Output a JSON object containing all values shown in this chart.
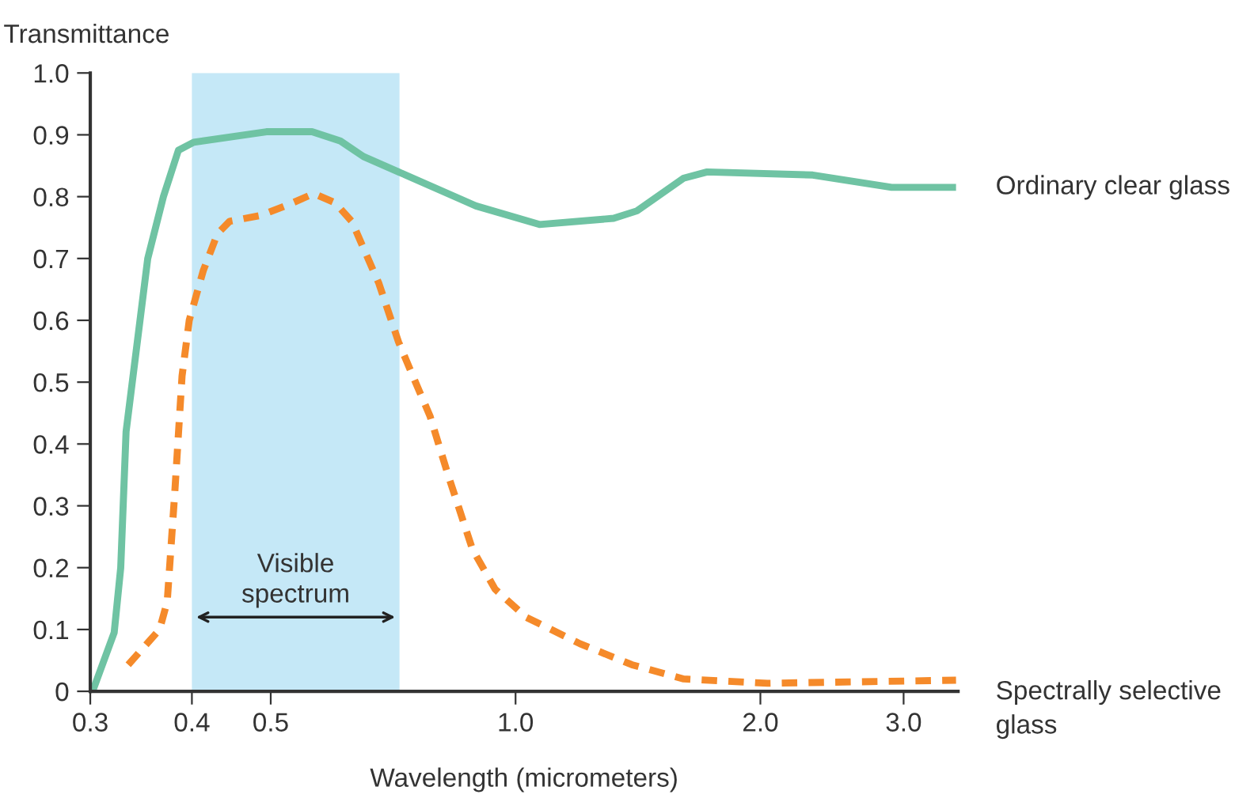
{
  "chart_data": {
    "type": "line",
    "ylabel": "Transmittance",
    "xlabel": "Wavelength (micrometers)",
    "log": "x",
    "grid": false,
    "marker": "none",
    "xlim": [
      0.3,
      3.5
    ],
    "xticks": [
      0.3,
      0.4,
      0.5,
      {
        "value": 1,
        "label": "1.0"
      },
      {
        "value": 2,
        "label": "2.0"
      },
      {
        "value": 3,
        "label": "3.0"
      }
    ],
    "ylim": [
      0,
      1
    ],
    "yticks": [
      0,
      0.1,
      0.2,
      0.3,
      0.4,
      0.5,
      0.6,
      0.7,
      0.8,
      0.9,
      {
        "value": 1,
        "label": "1.0"
      }
    ],
    "bands": [
      {
        "axis": "x",
        "from": 0.4,
        "to": 0.72,
        "label": "Visible\nspectrum",
        "color": "#c5e8f7"
      }
    ],
    "series": [
      {
        "name": "Ordinary clear glass",
        "color": "#6fc3a3",
        "line_style": "solid",
        "x": [
          0.302,
          0.321,
          0.327,
          0.332,
          0.353,
          0.369,
          0.385,
          0.402,
          0.494,
          0.562,
          0.609,
          0.65,
          0.718,
          0.894,
          1.07,
          1.32,
          1.41,
          1.61,
          1.72,
          2.32,
          2.9,
          3.48
        ],
        "values": [
          0,
          0.095,
          0.2,
          0.42,
          0.7,
          0.8,
          0.875,
          0.888,
          0.905,
          0.905,
          0.89,
          0.865,
          0.84,
          0.785,
          0.755,
          0.765,
          0.777,
          0.83,
          0.84,
          0.835,
          0.815,
          0.815
        ]
      },
      {
        "name": "Spectrally selective\nglass",
        "color": "#f58a2a",
        "line_style": "dashed",
        "x": [
          0.334,
          0.365,
          0.373,
          0.381,
          0.389,
          0.397,
          0.413,
          0.43,
          0.445,
          0.487,
          0.521,
          0.565,
          0.6,
          0.629,
          0.679,
          0.718,
          0.756,
          0.785,
          0.826,
          0.885,
          0.944,
          1.03,
          1.2,
          1.39,
          1.61,
          2.04,
          3.48
        ],
        "values": [
          0.043,
          0.1,
          0.145,
          0.32,
          0.51,
          0.6,
          0.68,
          0.74,
          0.76,
          0.77,
          0.785,
          0.805,
          0.79,
          0.76,
          0.66,
          0.565,
          0.495,
          0.445,
          0.35,
          0.23,
          0.165,
          0.12,
          0.077,
          0.043,
          0.02,
          0.013,
          0.018
        ]
      }
    ]
  }
}
